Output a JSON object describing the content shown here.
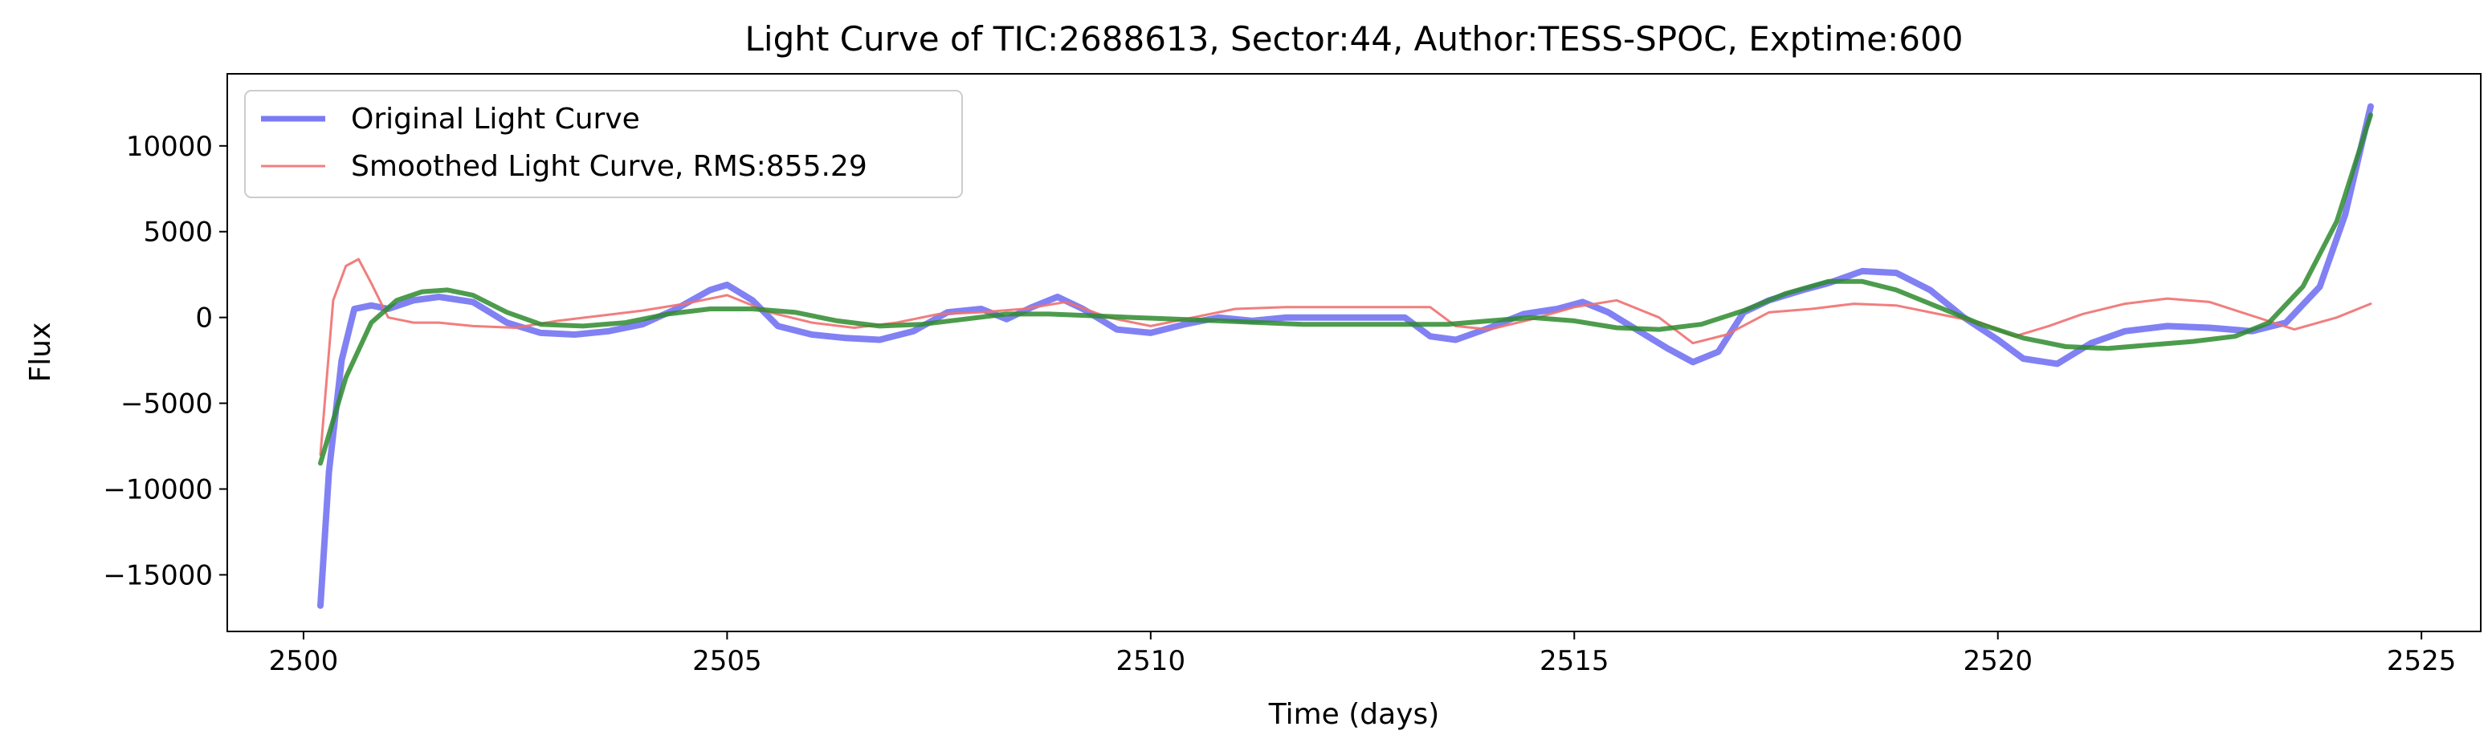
{
  "chart_data": {
    "type": "line",
    "title": "Light Curve of TIC:2688613, Sector:44, Author:TESS-SPOC, Exptime:600",
    "xlabel": "Time (days)",
    "ylabel": "Flux",
    "xlim": [
      2499.1,
      2525.7
    ],
    "ylim": [
      -18300,
      14200
    ],
    "xticks": [
      2500,
      2505,
      2510,
      2515,
      2520,
      2525
    ],
    "xtick_labels": [
      "2500",
      "2505",
      "2510",
      "2515",
      "2520",
      "2525"
    ],
    "yticks": [
      -15000,
      -10000,
      -5000,
      0,
      5000,
      10000
    ],
    "ytick_labels": [
      "−15000",
      "−10000",
      "−5000",
      "0",
      "5000",
      "10000"
    ],
    "grid": false,
    "legend_position": "top-left",
    "legend": [
      {
        "label": "Original Light Curve",
        "color": "#7b7bf5"
      },
      {
        "label": "Smoothed Light Curve, RMS:855.29",
        "color": "#f08080"
      }
    ],
    "series": [
      {
        "name": "Original Light Curve",
        "color": "#6f6ff2",
        "width": 8,
        "x": [
          2500.2,
          2500.3,
          2500.45,
          2500.6,
          2500.8,
          2501.0,
          2501.3,
          2501.6,
          2502.0,
          2502.4,
          2502.8,
          2503.2,
          2503.6,
          2504.0,
          2504.4,
          2504.8,
          2505.0,
          2505.3,
          2505.6,
          2506.0,
          2506.4,
          2506.8,
          2507.2,
          2507.6,
          2508.0,
          2508.3,
          2508.6,
          2508.9,
          2509.2,
          2509.6,
          2510.0,
          2510.4,
          2510.8,
          2511.2,
          2511.6,
          2512.0,
          2512.5,
          2513.0,
          2513.3,
          2513.6,
          2514.0,
          2514.4,
          2514.8,
          2515.1,
          2515.4,
          2515.8,
          2516.1,
          2516.4,
          2516.7,
          2517.0,
          2517.3,
          2517.7,
          2518.0,
          2518.4,
          2518.8,
          2519.2,
          2519.6,
          2520.0,
          2520.3,
          2520.7,
          2521.1,
          2521.5,
          2522.0,
          2522.5,
          2523.0,
          2523.4,
          2523.8,
          2524.1,
          2524.4
        ],
        "y": [
          -16800,
          -9000,
          -2500,
          500,
          700,
          500,
          1000,
          1200,
          900,
          -300,
          -900,
          -1000,
          -800,
          -400,
          500,
          1600,
          1900,
          1000,
          -500,
          -1000,
          -1200,
          -1300,
          -800,
          300,
          500,
          -100,
          600,
          1200,
          500,
          -700,
          -900,
          -400,
          0,
          -200,
          0,
          0,
          0,
          0,
          -1100,
          -1300,
          -600,
          200,
          500,
          900,
          300,
          -900,
          -1800,
          -2600,
          -2000,
          300,
          1000,
          1600,
          2000,
          2700,
          2600,
          1600,
          0,
          -1300,
          -2400,
          -2700,
          -1500,
          -800,
          -500,
          -600,
          -800,
          -300,
          1800,
          6000,
          12300
        ]
      },
      {
        "name": "Smoothed Light Curve, RMS:855.29",
        "color": "#f07070",
        "width": 3,
        "x": [
          2500.2,
          2500.35,
          2500.5,
          2500.65,
          2500.8,
          2501.0,
          2501.3,
          2501.6,
          2502.0,
          2502.5,
          2503.0,
          2503.5,
          2504.0,
          2504.5,
          2505.0,
          2505.5,
          2506.0,
          2506.5,
          2507.0,
          2507.5,
          2508.0,
          2508.5,
          2509.0,
          2509.5,
          2510.0,
          2510.5,
          2511.0,
          2511.6,
          2512.0,
          2513.3,
          2513.6,
          2514.0,
          2514.5,
          2515.0,
          2515.5,
          2516.0,
          2516.4,
          2516.8,
          2517.3,
          2517.8,
          2518.3,
          2518.8,
          2519.3,
          2519.8,
          2520.2,
          2520.6,
          2521.0,
          2521.5,
          2522.0,
          2522.5,
          2523.0,
          2523.5,
          2524.0,
          2524.4
        ],
        "y": [
          -8000,
          1000,
          3000,
          3400,
          2000,
          0,
          -300,
          -300,
          -500,
          -600,
          -200,
          100,
          400,
          800,
          1300,
          300,
          -300,
          -600,
          -300,
          200,
          300,
          500,
          900,
          0,
          -500,
          0,
          500,
          600,
          600,
          600,
          -500,
          -700,
          -100,
          600,
          1000,
          0,
          -1500,
          -1000,
          300,
          500,
          800,
          700,
          200,
          -300,
          -1100,
          -500,
          200,
          800,
          1100,
          900,
          100,
          -700,
          0,
          800
        ]
      },
      {
        "name": "",
        "color": "#2e8b2e",
        "width": 6,
        "x": [
          2500.2,
          2500.5,
          2500.8,
          2501.1,
          2501.4,
          2501.7,
          2502.0,
          2502.4,
          2502.8,
          2503.3,
          2503.8,
          2504.3,
          2504.8,
          2505.3,
          2505.8,
          2506.3,
          2506.8,
          2507.3,
          2507.8,
          2508.3,
          2508.8,
          2509.3,
          2509.8,
          2510.3,
          2510.8,
          2511.3,
          2511.8,
          2512.5,
          2513.0,
          2513.5,
          2514.0,
          2514.5,
          2515.0,
          2515.5,
          2516.0,
          2516.5,
          2517.0,
          2517.5,
          2518.0,
          2518.4,
          2518.8,
          2519.3,
          2519.8,
          2520.3,
          2520.8,
          2521.3,
          2521.8,
          2522.3,
          2522.8,
          2523.2,
          2523.6,
          2524.0,
          2524.4
        ],
        "y": [
          -8500,
          -3500,
          -300,
          1000,
          1500,
          1600,
          1300,
          300,
          -400,
          -500,
          -300,
          200,
          500,
          500,
          300,
          -200,
          -500,
          -400,
          -100,
          200,
          200,
          100,
          0,
          -100,
          -200,
          -300,
          -400,
          -400,
          -400,
          -400,
          -200,
          0,
          -200,
          -600,
          -700,
          -400,
          400,
          1400,
          2100,
          2100,
          1600,
          600,
          -400,
          -1200,
          -1700,
          -1800,
          -1600,
          -1400,
          -1100,
          -300,
          1800,
          5600,
          11800
        ]
      }
    ]
  }
}
